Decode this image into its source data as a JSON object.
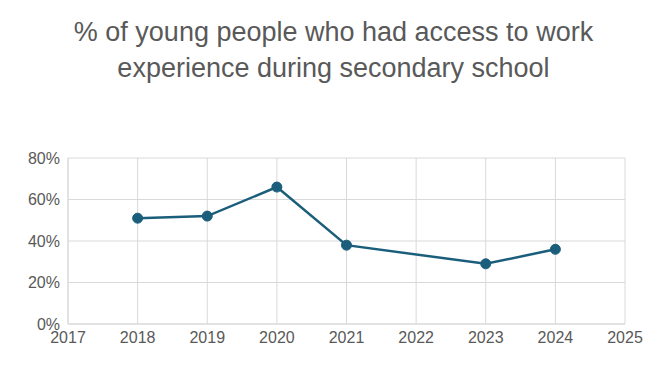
{
  "chart_data": {
    "type": "line",
    "title": "% of young people who had access to work experience during secondary school",
    "x": [
      2018,
      2019,
      2020,
      2021,
      2023,
      2024
    ],
    "values": [
      51,
      52,
      66,
      38,
      29,
      36
    ],
    "color": "#1b5e7b",
    "marker": "circle",
    "xlim": [
      2017,
      2025
    ],
    "xticks": [
      2017,
      2018,
      2019,
      2020,
      2021,
      2022,
      2023,
      2024,
      2025
    ],
    "ylim": [
      0,
      80
    ],
    "yticks": [
      {
        "value": 0,
        "label": "0%"
      },
      {
        "value": 20,
        "label": "20%"
      },
      {
        "value": 40,
        "label": "40%"
      },
      {
        "value": 60,
        "label": "60%"
      },
      {
        "value": 80,
        "label": "80%"
      }
    ],
    "grid": true
  }
}
